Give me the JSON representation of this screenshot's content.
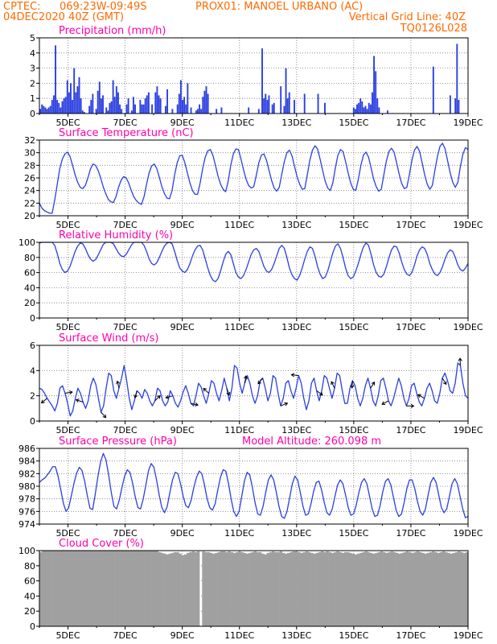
{
  "header": {
    "source": "CPTEC:",
    "coords": "069:23W-09:49S",
    "location": "PROX01: MANOEL URBANO (AC)",
    "datetime": "04DEC2020 40Z (GMT)",
    "grid_note": "Vertical Grid Line: 40Z",
    "model_code": "TQ0126L028"
  },
  "colors": {
    "header": "#ff6a00",
    "title": "#ff00aa",
    "series": "#2b3fe0",
    "bars": "#2b3fe0",
    "cloud": "#a0a0a0"
  },
  "chart_data": [
    {
      "type": "bar",
      "title": "Precipitation (mm/h)",
      "ylim": [
        0,
        5
      ],
      "yticks": [
        0,
        1,
        2,
        3,
        4,
        5
      ],
      "x_tick_labels": [
        "5DEC",
        "7DEC",
        "9DEC",
        "11DEC",
        "13DEC",
        "15DEC",
        "17DEC",
        "19DEC"
      ],
      "x_range_days": [
        4.0,
        19.0
      ],
      "grid": true,
      "values": [
        0.3,
        0.6,
        0.5,
        0.4,
        0.3,
        0.4,
        0.5,
        0.9,
        1.2,
        4.5,
        0.9,
        0.7,
        0.4,
        0.8,
        1.0,
        1.1,
        2.2,
        1.4,
        2.0,
        0.9,
        3.0,
        1.4,
        1.8,
        2.4,
        1.0,
        0.2,
        0.1,
        0.0,
        0.0,
        0.5,
        0.9,
        1.3,
        0.0,
        0.3,
        1.5,
        2.1,
        1.0,
        1.2,
        0.0,
        0.4,
        0.2,
        0.7,
        0.8,
        2.2,
        1.1,
        1.8,
        1.4,
        0.6,
        0.3,
        0.0,
        0.0,
        0.6,
        1.0,
        0.0,
        0.2,
        1.1,
        0.6,
        0.0,
        0.0,
        0.9,
        0.6,
        0.6,
        1.0,
        1.2,
        1.4,
        0.0,
        0.6,
        0.0,
        1.4,
        1.8,
        1.2,
        1.0,
        0.0,
        0.0,
        0.5,
        1.6,
        0.0,
        0.0,
        0.3,
        0.0,
        0.0,
        0.6,
        1.3,
        2.2,
        0.9,
        1.1,
        0.6,
        2.0,
        0.0,
        0.4,
        0.0,
        0.0,
        0.2,
        0.3,
        0.6,
        0.3,
        1.1,
        1.5,
        1.8,
        1.3,
        0.0,
        0.0,
        0.0,
        0.0,
        0.3,
        0.0,
        0.0,
        0.4,
        0.0,
        0.0,
        0.0,
        0.0,
        0.0,
        0.0,
        0.0,
        0.0,
        0.0,
        0.0,
        0.0,
        0.0,
        0.0,
        0.0,
        0.0,
        0.4,
        0.0,
        0.0,
        0.0,
        0.0,
        0.0,
        0.3,
        0.0,
        4.3,
        1.0,
        1.3,
        0.9,
        1.2,
        0.0,
        0.6,
        0.7,
        0.0,
        0.0,
        0.0,
        1.8,
        0.0,
        0.5,
        3.0,
        1.0,
        1.4,
        0.0,
        0.0,
        0.9,
        0.0,
        0.0,
        0.0,
        0.0,
        0.0,
        1.3,
        0.0,
        0.0,
        0.0,
        0.0,
        0.0,
        0.0,
        0.0,
        1.3,
        0.0,
        0.0,
        0.0,
        0.7,
        0.0,
        0.0,
        0.0,
        0.0,
        0.0,
        0.0,
        0.0,
        0.0,
        0.0,
        0.0,
        0.0,
        0.0,
        0.0,
        0.0,
        0.0,
        0.0,
        0.4,
        0.3,
        0.6,
        0.7,
        1.0,
        0.8,
        0.4,
        0.5,
        0.3,
        0.7,
        0.6,
        1.4,
        3.8,
        2.8,
        1.0,
        0.4,
        0.0,
        0.0,
        0.0,
        0.0,
        0.2,
        0.0,
        0.0,
        0.0,
        0.0,
        0.0,
        0.0,
        0.0,
        0.0,
        0.0,
        0.0,
        0.0,
        0.0,
        0.0,
        0.0,
        0.0,
        0.0,
        0.0,
        0.0,
        0.0,
        0.0,
        0.0,
        0.0,
        0.0,
        0.0,
        0.0,
        0.0,
        3.1,
        0.0,
        0.0,
        0.0,
        0.0,
        0.0,
        0.0,
        0.0,
        0.0,
        0.0,
        1.2,
        0.0,
        0.0,
        1.0,
        4.6,
        0.9,
        0.0,
        0.0,
        0.0,
        0.0,
        0.0
      ]
    },
    {
      "type": "line",
      "title": "Surface Temperature (nC)",
      "ylim": [
        20,
        32
      ],
      "yticks": [
        20,
        22,
        24,
        26,
        28,
        30,
        32
      ],
      "x_tick_labels": [
        "5DEC",
        "7DEC",
        "9DEC",
        "11DEC",
        "13DEC",
        "15DEC",
        "17DEC",
        "19DEC"
      ],
      "x_range_days": [
        4.0,
        19.0
      ],
      "grid": true,
      "values": [
        22.0,
        21.2,
        20.8,
        20.6,
        20.4,
        20.4,
        22.5,
        25.0,
        27.5,
        29.0,
        29.8,
        30.1,
        29.4,
        28.0,
        26.5,
        25.3,
        24.5,
        24.3,
        24.8,
        26.0,
        27.4,
        28.2,
        28.0,
        27.2,
        26.0,
        24.6,
        23.5,
        22.6,
        22.2,
        22.1,
        23.0,
        24.5,
        25.6,
        26.2,
        26.0,
        25.2,
        24.0,
        23.0,
        22.4,
        22.0,
        21.8,
        23.0,
        25.0,
        26.8,
        27.9,
        28.2,
        27.5,
        26.1,
        24.6,
        23.5,
        22.8,
        22.7,
        24.0,
        26.5,
        28.4,
        29.5,
        29.6,
        28.4,
        26.8,
        25.2,
        24.0,
        23.4,
        23.4,
        25.2,
        27.5,
        29.3,
        30.3,
        30.5,
        29.6,
        28.0,
        26.3,
        25.0,
        24.2,
        23.8,
        25.5,
        28.0,
        29.8,
        30.6,
        30.5,
        29.0,
        27.3,
        25.8,
        24.8,
        24.4,
        24.6,
        26.4,
        28.4,
        29.6,
        29.8,
        28.8,
        27.2,
        25.6,
        24.4,
        23.9,
        24.5,
        26.6,
        28.6,
        30.0,
        30.4,
        29.5,
        27.8,
        26.2,
        25.0,
        24.2,
        24.3,
        26.5,
        28.8,
        30.4,
        31.1,
        30.6,
        29.0,
        27.2,
        25.5,
        24.4,
        24.0,
        25.2,
        27.6,
        29.6,
        30.5,
        30.2,
        28.6,
        26.8,
        25.2,
        24.2,
        24.0,
        25.8,
        28.0,
        29.6,
        30.1,
        29.3,
        27.6,
        25.8,
        24.6,
        23.9,
        24.2,
        26.5,
        28.7,
        30.2,
        30.7,
        30.1,
        28.4,
        26.6,
        25.1,
        24.3,
        24.5,
        26.5,
        28.8,
        30.4,
        31.0,
        30.2,
        28.4,
        26.5,
        25.0,
        24.2,
        24.8,
        27.2,
        29.4,
        31.0,
        31.5,
        30.6,
        28.7,
        26.8,
        25.3,
        24.5,
        25.3,
        27.8,
        29.8,
        30.8,
        30.5
      ]
    },
    {
      "type": "line",
      "title": "Relative Humidity (%)",
      "ylim": [
        0,
        100
      ],
      "yticks": [
        0,
        20,
        40,
        60,
        80,
        100
      ],
      "x_tick_labels": [
        "5DEC",
        "7DEC",
        "9DEC",
        "11DEC",
        "13DEC",
        "15DEC",
        "17DEC",
        "19DEC"
      ],
      "x_range_days": [
        4.0,
        19.0
      ],
      "grid": true,
      "values": [
        99,
        100,
        100,
        100,
        100,
        100,
        96,
        85,
        72,
        64,
        60,
        62,
        68,
        78,
        88,
        95,
        99,
        98,
        92,
        84,
        78,
        75,
        77,
        83,
        90,
        97,
        100,
        100,
        100,
        98,
        92,
        86,
        82,
        81,
        84,
        90,
        96,
        100,
        100,
        100,
        100,
        96,
        88,
        78,
        72,
        70,
        73,
        80,
        88,
        95,
        99,
        100,
        98,
        88,
        76,
        66,
        62,
        60,
        64,
        72,
        82,
        90,
        95,
        96,
        90,
        78,
        66,
        56,
        50,
        48,
        52,
        62,
        74,
        84,
        88,
        84,
        72,
        60,
        54,
        52,
        56,
        64,
        74,
        84,
        90,
        92,
        88,
        78,
        68,
        62,
        60,
        64,
        72,
        82,
        92,
        96,
        92,
        80,
        66,
        57,
        52,
        50,
        56,
        66,
        78,
        88,
        94,
        92,
        82,
        68,
        58,
        52,
        54,
        62,
        74,
        86,
        95,
        98,
        92,
        80,
        66,
        56,
        52,
        54,
        62,
        72,
        84,
        94,
        99,
        96,
        84,
        70,
        60,
        55,
        54,
        58,
        68,
        80,
        90,
        95,
        94,
        86,
        74,
        64,
        58,
        56,
        60,
        70,
        82,
        90,
        94,
        92,
        84,
        72,
        64,
        58,
        56,
        60,
        68,
        78,
        86,
        90,
        88,
        80,
        70,
        64,
        62,
        66,
        72
      ]
    },
    {
      "type": "line",
      "title": "Surface Wind (m/s)",
      "ylim": [
        0,
        6
      ],
      "yticks": [
        0,
        2,
        4,
        6
      ],
      "x_tick_labels": [
        "5DEC",
        "7DEC",
        "9DEC",
        "11DEC",
        "13DEC",
        "15DEC",
        "17DEC",
        "19DEC"
      ],
      "x_range_days": [
        4.0,
        19.0
      ],
      "grid": true,
      "values": [
        2.6,
        2.5,
        2.2,
        1.8,
        1.5,
        1.2,
        0.8,
        1.4,
        2.6,
        2.8,
        2.2,
        1.4,
        0.4,
        0.8,
        1.8,
        2.6,
        2.2,
        1.5,
        1.0,
        1.6,
        2.8,
        3.4,
        2.9,
        1.8,
        0.7,
        1.2,
        2.6,
        3.8,
        3.6,
        2.4,
        1.8,
        2.6,
        3.4,
        4.4,
        3.2,
        1.8,
        0.9,
        1.6,
        2.4,
        2.2,
        1.8,
        2.5,
        2.2,
        1.6,
        1.2,
        1.6,
        2.6,
        2.4,
        1.6,
        1.2,
        1.5,
        2.4,
        2.0,
        1.4,
        1.1,
        1.6,
        2.3,
        2.8,
        2.2,
        1.4,
        1.2,
        2.0,
        3.0,
        2.7,
        2.0,
        1.4,
        2.2,
        3.2,
        3.0,
        2.2,
        1.6,
        2.4,
        3.4,
        2.6,
        1.6,
        2.6,
        4.4,
        4.2,
        3.0,
        2.2,
        3.0,
        3.6,
        3.0,
        2.0,
        1.4,
        2.0,
        3.2,
        3.4,
        2.6,
        1.6,
        2.2,
        3.6,
        3.4,
        2.2,
        1.2,
        1.8,
        3.0,
        3.2,
        2.4,
        1.8,
        2.6,
        3.6,
        3.0,
        1.8,
        0.9,
        1.6,
        3.0,
        3.4,
        2.4,
        1.6,
        2.4,
        3.6,
        3.4,
        2.6,
        1.8,
        2.6,
        3.8,
        3.6,
        2.4,
        1.4,
        1.4,
        2.6,
        3.2,
        2.8,
        1.8,
        1.2,
        1.8,
        2.8,
        3.4,
        2.6,
        1.6,
        1.2,
        2.0,
        3.2,
        3.4,
        2.6,
        1.6,
        1.2,
        1.8,
        2.6,
        3.4,
        2.8,
        1.8,
        1.2,
        1.8,
        2.8,
        3.0,
        2.2,
        1.5,
        1.2,
        1.8,
        2.6,
        3.0,
        2.4,
        1.6,
        1.4,
        2.2,
        3.4,
        3.8,
        3.2,
        2.4,
        2.2,
        3.0,
        4.6,
        4.4,
        3.0,
        2.0,
        1.8
      ]
    },
    {
      "type": "line",
      "title": "Surface Pressure (hPa)",
      "annotation": "Model Altitude: 260.098 m",
      "ylim": [
        974,
        986
      ],
      "yticks": [
        974,
        976,
        978,
        980,
        982,
        984,
        986
      ],
      "x_tick_labels": [
        "5DEC",
        "7DEC",
        "9DEC",
        "11DEC",
        "13DEC",
        "15DEC",
        "17DEC",
        "19DEC"
      ],
      "x_range_days": [
        4.0,
        19.0
      ],
      "grid": true,
      "values": [
        980.6,
        981.0,
        981.3,
        981.8,
        982.4,
        983.1,
        983.1,
        981.6,
        979.5,
        977.3,
        976.0,
        976.6,
        978.5,
        980.5,
        982.1,
        983.0,
        982.5,
        980.8,
        978.5,
        976.5,
        976.3,
        978.8,
        981.6,
        983.9,
        985.2,
        984.2,
        981.8,
        979.0,
        976.8,
        976.4,
        977.8,
        979.8,
        981.6,
        982.6,
        982.2,
        980.5,
        978.3,
        976.6,
        976.4,
        978.0,
        980.2,
        982.5,
        983.6,
        983.0,
        981.0,
        978.6,
        976.6,
        975.8,
        976.8,
        979.0,
        981.0,
        982.2,
        982.0,
        980.4,
        978.4,
        976.9,
        976.6,
        977.8,
        979.8,
        981.4,
        982.4,
        982.0,
        980.2,
        978.0,
        976.6,
        976.2,
        977.2,
        979.4,
        981.4,
        982.6,
        982.4,
        980.5,
        978.0,
        976.0,
        975.2,
        976.0,
        978.4,
        980.8,
        982.2,
        981.8,
        979.8,
        977.4,
        975.6,
        975.4,
        976.8,
        979.0,
        981.0,
        981.8,
        981.0,
        979.0,
        976.8,
        975.2,
        974.9,
        976.0,
        978.2,
        980.4,
        981.6,
        981.0,
        979.0,
        976.8,
        975.4,
        975.6,
        977.2,
        979.2,
        980.6,
        980.8,
        979.4,
        977.4,
        975.8,
        975.4,
        976.4,
        978.4,
        980.2,
        981.0,
        980.4,
        978.6,
        976.6,
        975.4,
        975.6,
        977.0,
        979.0,
        980.6,
        981.2,
        980.4,
        978.4,
        976.4,
        975.2,
        975.4,
        977.0,
        979.2,
        980.8,
        981.2,
        980.2,
        978.2,
        976.2,
        975.2,
        975.6,
        977.4,
        979.6,
        981.0,
        981.0,
        979.6,
        977.6,
        976.0,
        975.4,
        976.4,
        978.6,
        980.6,
        981.4,
        980.6,
        978.6,
        976.6,
        975.8,
        976.4,
        978.4,
        980.4,
        981.2,
        980.4,
        978.4,
        976.4,
        975.0,
        975.2
      ]
    },
    {
      "type": "area",
      "title": "Cloud Cover (%)",
      "ylim": [
        0,
        100
      ],
      "yticks": [
        0,
        20,
        40,
        60,
        80,
        100
      ],
      "x_tick_labels": [
        "5DEC",
        "7DEC",
        "9DEC",
        "11DEC",
        "13DEC",
        "15DEC",
        "17DEC",
        "19DEC"
      ],
      "x_range_days": [
        4.0,
        19.0
      ],
      "grid": true,
      "values": [
        98,
        100,
        100,
        100,
        100,
        100,
        100,
        100,
        100,
        100,
        100,
        100,
        100,
        100,
        100,
        100,
        100,
        100,
        100,
        100,
        100,
        100,
        100,
        100,
        100,
        100,
        100,
        100,
        100,
        100,
        100,
        100,
        100,
        100,
        100,
        100,
        100,
        100,
        100,
        100,
        100,
        100,
        100,
        100,
        100,
        100,
        98,
        97,
        96,
        95,
        96,
        97,
        98,
        98,
        96,
        94,
        95,
        97,
        98,
        99,
        98,
        99,
        0,
        99,
        98,
        98,
        97,
        96,
        97,
        98,
        99,
        99,
        98,
        99,
        98,
        97,
        98,
        99,
        98,
        97,
        96,
        97,
        98,
        99,
        98,
        98,
        96,
        95,
        97,
        98,
        99,
        98,
        98,
        99,
        97,
        96,
        97,
        98,
        99,
        99,
        98,
        97,
        98,
        99,
        98,
        97,
        96,
        97,
        98,
        99,
        98,
        99,
        98,
        97,
        98,
        99,
        98,
        97,
        98,
        98,
        97,
        96,
        95,
        96,
        97,
        98,
        99,
        98,
        97,
        96,
        97,
        98,
        99,
        98,
        97,
        98,
        99,
        98,
        97,
        96,
        97,
        98,
        99,
        98,
        97,
        98,
        99,
        98,
        97,
        96,
        97,
        98,
        99,
        98,
        97,
        98,
        99,
        98,
        97,
        96,
        97,
        98,
        99,
        98,
        97,
        98
      ]
    }
  ]
}
